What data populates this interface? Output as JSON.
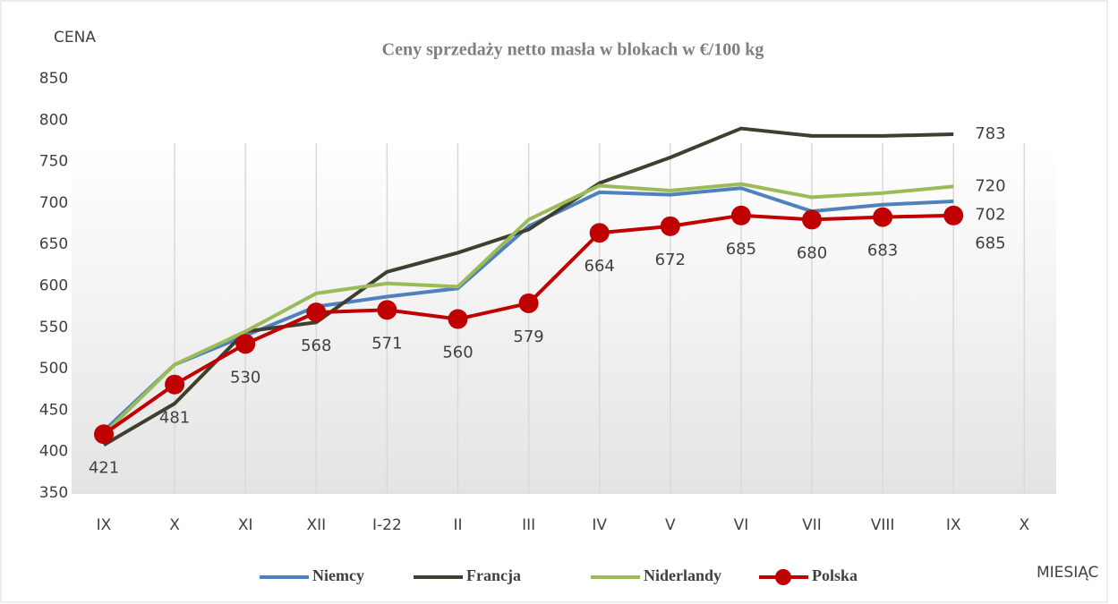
{
  "chart_data": {
    "type": "line",
    "title": "Ceny sprzedaży  netto masła w blokach  w €/100 kg",
    "y_label": "CENA",
    "x_label": "MIESIĄC",
    "categories": [
      "IX",
      "X",
      "XI",
      "XII",
      "I-22",
      "II",
      "III",
      "IV",
      "V",
      "VI",
      "VII",
      "VIII",
      "IX",
      "X"
    ],
    "series": [
      {
        "name": "Niemcy",
        "color": "#4f81bd",
        "data_labels": "last",
        "marker": false,
        "values": [
          425,
          505,
          540,
          575,
          587,
          597,
          672,
          713,
          710,
          718,
          690,
          698,
          702,
          null
        ]
      },
      {
        "name": "Francja",
        "color": "#3f3f2f",
        "data_labels": "last",
        "marker": false,
        "values": [
          408,
          458,
          545,
          556,
          617,
          640,
          668,
          724,
          755,
          790,
          781,
          781,
          783,
          null
        ]
      },
      {
        "name": "Niderlandy",
        "color": "#9bbb59",
        "data_labels": "last",
        "marker": false,
        "values": [
          421,
          505,
          545,
          591,
          603,
          599,
          680,
          721,
          715,
          723,
          707,
          712,
          720,
          null
        ]
      },
      {
        "name": "Polska",
        "color": "#c00000",
        "data_labels": "all",
        "marker": true,
        "values": [
          421,
          481,
          530,
          568,
          571,
          560,
          579,
          664,
          672,
          685,
          680,
          683,
          685,
          null
        ]
      }
    ],
    "ylim": [
      350,
      850
    ],
    "yticks": [
      350,
      400,
      450,
      500,
      550,
      600,
      650,
      700,
      750,
      800,
      850
    ],
    "grid": "vertical",
    "legend": "bottom"
  }
}
